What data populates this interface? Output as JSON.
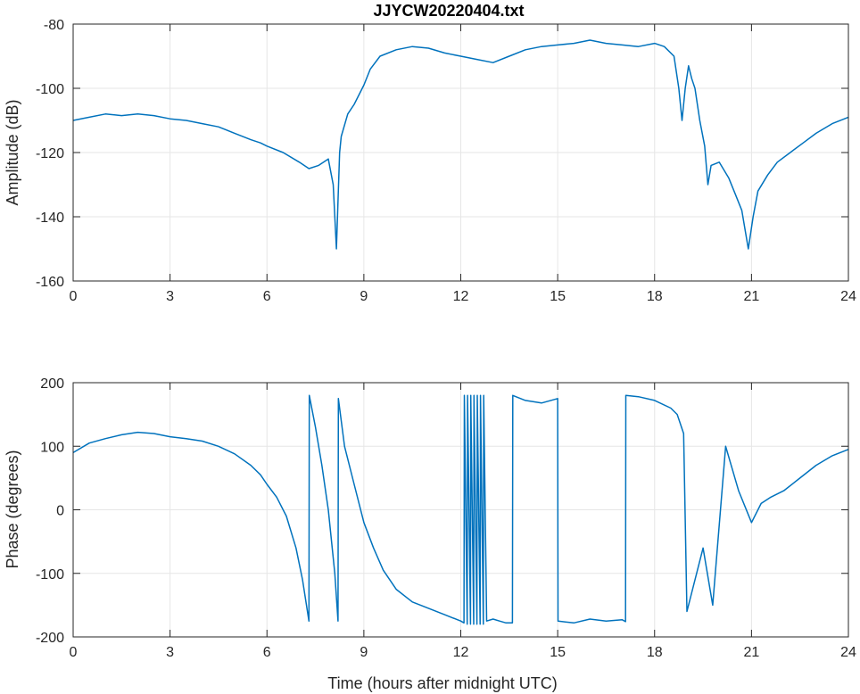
{
  "title": "JJYCW20220404.txt",
  "colors": {
    "series": "#0072bd",
    "grid": "#e6e6e6",
    "axis": "#262626"
  },
  "chart_data": [
    {
      "type": "line",
      "title": "JJYCW20220404.txt",
      "xlabel": "",
      "ylabel": "Amplitude (dB)",
      "xlim": [
        0,
        24
      ],
      "ylim": [
        -160,
        -80
      ],
      "xticks": [
        0,
        3,
        6,
        9,
        12,
        15,
        18,
        21,
        24
      ],
      "yticks": [
        -160,
        -140,
        -120,
        -100,
        -80
      ],
      "grid": true,
      "series": [
        {
          "x": [
            0,
            0.5,
            1,
            1.5,
            2,
            2.5,
            3,
            3.5,
            4,
            4.5,
            5,
            5.5,
            5.8,
            6,
            6.5,
            7,
            7.3,
            7.6,
            7.9,
            8.05,
            8.15,
            8.2,
            8.25,
            8.3,
            8.5,
            8.7,
            9,
            9.2,
            9.5,
            10,
            10.5,
            11,
            11.5,
            12,
            12.5,
            13,
            13.5,
            14,
            14.5,
            15,
            15.5,
            16,
            16.5,
            17,
            17.5,
            18,
            18.3,
            18.6,
            18.75,
            18.85,
            18.95,
            19.05,
            19.15,
            19.25,
            19.4,
            19.55,
            19.65,
            19.75,
            20,
            20.3,
            20.5,
            20.7,
            20.9,
            21.05,
            21.2,
            21.5,
            21.8,
            22.2,
            22.6,
            23,
            23.5,
            24
          ],
          "y": [
            -110,
            -109,
            -108,
            -108.5,
            -108,
            -108.5,
            -109.5,
            -110,
            -111,
            -112,
            -114,
            -116,
            -117,
            -118,
            -120,
            -123,
            -125,
            -124,
            -122,
            -130,
            -150,
            -135,
            -120,
            -115,
            -108,
            -105,
            -99,
            -94,
            -90,
            -88,
            -87,
            -87.5,
            -89,
            -90,
            -91,
            -92,
            -90,
            -88,
            -87,
            -86.5,
            -86,
            -85,
            -86,
            -86.5,
            -87,
            -86,
            -87,
            -90,
            -100,
            -110,
            -100,
            -93,
            -97,
            -100,
            -110,
            -118,
            -130,
            -124,
            -123,
            -128,
            -133,
            -138,
            -150,
            -140,
            -132,
            -127,
            -123,
            -120,
            -117,
            -114,
            -111,
            -109
          ]
        }
      ]
    },
    {
      "type": "line",
      "title": "",
      "xlabel": "Time (hours after midnight UTC)",
      "ylabel": "Phase (degrees)",
      "xlim": [
        0,
        24
      ],
      "ylim": [
        -200,
        200
      ],
      "xticks": [
        0,
        3,
        6,
        9,
        12,
        15,
        18,
        21,
        24
      ],
      "yticks": [
        -200,
        -100,
        0,
        100,
        200
      ],
      "grid": true,
      "series": [
        {
          "x": [
            0,
            0.5,
            1,
            1.5,
            2,
            2.5,
            3,
            3.5,
            4,
            4.5,
            5,
            5.5,
            5.8,
            6,
            6.3,
            6.6,
            6.9,
            7.1,
            7.3,
            7.31,
            7.5,
            7.7,
            7.9,
            8.1,
            8.2,
            8.21,
            8.4,
            8.7,
            9,
            9.3,
            9.6,
            10,
            10.5,
            11,
            11.5,
            12,
            12.1,
            12.11,
            12.2,
            12.21,
            12.3,
            12.31,
            12.4,
            12.41,
            12.5,
            12.51,
            12.6,
            12.61,
            12.7,
            12.71,
            12.8,
            13,
            13.2,
            13.4,
            13.6,
            13.61,
            14,
            14.5,
            15,
            15.01,
            15.5,
            16,
            16.5,
            17,
            17.1,
            17.11,
            17.5,
            18,
            18.5,
            18.7,
            18.9,
            19,
            19.5,
            19.8,
            20.2,
            20.6,
            21,
            21.3,
            21.6,
            22,
            22.5,
            23,
            23.5,
            24
          ],
          "y": [
            90,
            105,
            112,
            118,
            122,
            120,
            115,
            112,
            108,
            100,
            88,
            70,
            55,
            40,
            20,
            -10,
            -60,
            -110,
            -175,
            180,
            130,
            70,
            0,
            -100,
            -175,
            175,
            100,
            40,
            -20,
            -60,
            -95,
            -125,
            -145,
            -155,
            -165,
            -175,
            -178,
            180,
            -180,
            180,
            -180,
            180,
            -180,
            180,
            -180,
            180,
            -180,
            180,
            -180,
            180,
            -175,
            -172,
            -175,
            -178,
            -178,
            180,
            172,
            168,
            175,
            -175,
            -178,
            -172,
            -175,
            -173,
            -176,
            180,
            178,
            172,
            160,
            150,
            120,
            -160,
            -60,
            -150,
            100,
            30,
            -20,
            10,
            20,
            30,
            50,
            70,
            85,
            95
          ]
        }
      ]
    }
  ]
}
